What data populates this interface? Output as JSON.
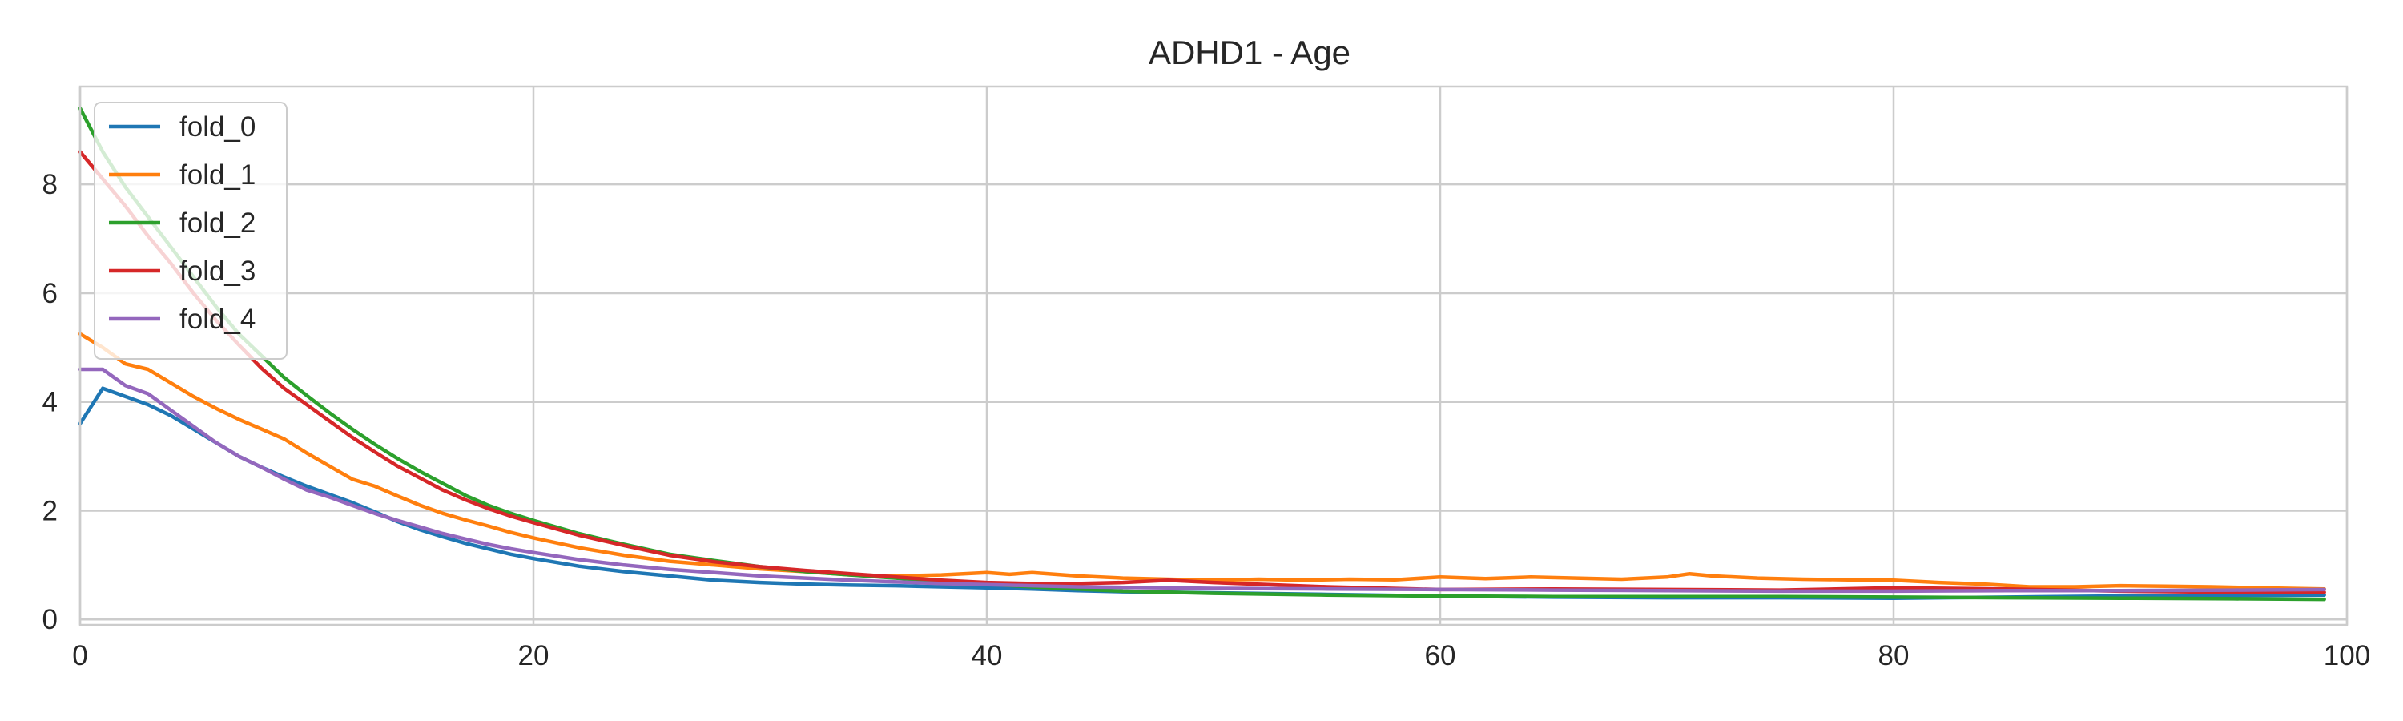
{
  "chart_data": {
    "type": "line",
    "title": "ADHD1 - Age",
    "xlabel": "",
    "ylabel": "",
    "xlim": [
      0,
      100
    ],
    "ylim": [
      -0.1,
      9.8
    ],
    "xticks": [
      0,
      20,
      40,
      60,
      80,
      100
    ],
    "yticks": [
      0,
      2,
      4,
      6,
      8
    ],
    "grid": true,
    "legend_position": "upper-left",
    "series": [
      {
        "name": "fold_0",
        "color": "#1f77b4",
        "x": [
          0,
          1,
          2,
          3,
          4,
          5,
          6,
          7,
          8,
          9,
          10,
          11,
          12,
          13,
          14,
          15,
          16,
          17,
          18,
          19,
          20,
          22,
          24,
          26,
          28,
          30,
          32,
          34,
          36,
          38,
          40,
          42,
          44,
          46,
          48,
          50,
          55,
          60,
          65,
          70,
          75,
          80,
          85,
          90,
          95,
          99
        ],
        "y": [
          3.6,
          4.25,
          4.1,
          3.95,
          3.75,
          3.5,
          3.25,
          3.0,
          2.8,
          2.62,
          2.45,
          2.3,
          2.15,
          1.98,
          1.8,
          1.65,
          1.52,
          1.4,
          1.3,
          1.2,
          1.12,
          0.98,
          0.88,
          0.8,
          0.72,
          0.68,
          0.65,
          0.63,
          0.62,
          0.6,
          0.58,
          0.56,
          0.53,
          0.51,
          0.5,
          0.49,
          0.46,
          0.43,
          0.41,
          0.4,
          0.4,
          0.39,
          0.41,
          0.43,
          0.44,
          0.45
        ]
      },
      {
        "name": "fold_1",
        "color": "#ff7f0e",
        "x": [
          0,
          1,
          2,
          3,
          4,
          5,
          6,
          7,
          8,
          9,
          10,
          11,
          12,
          13,
          14,
          15,
          16,
          17,
          18,
          19,
          20,
          22,
          24,
          26,
          28,
          30,
          32,
          34,
          36,
          38,
          40,
          41,
          42,
          44,
          46,
          48,
          50,
          52,
          54,
          56,
          58,
          60,
          62,
          64,
          66,
          68,
          70,
          71,
          72,
          74,
          76,
          78,
          80,
          82,
          84,
          86,
          88,
          90,
          92,
          94,
          96,
          99
        ],
        "y": [
          5.25,
          5.0,
          4.7,
          4.6,
          4.35,
          4.1,
          3.88,
          3.68,
          3.5,
          3.32,
          3.06,
          2.82,
          2.58,
          2.45,
          2.27,
          2.1,
          1.95,
          1.83,
          1.72,
          1.6,
          1.5,
          1.32,
          1.18,
          1.07,
          1.0,
          0.93,
          0.88,
          0.82,
          0.8,
          0.82,
          0.86,
          0.83,
          0.86,
          0.8,
          0.76,
          0.74,
          0.72,
          0.74,
          0.72,
          0.74,
          0.73,
          0.78,
          0.75,
          0.78,
          0.76,
          0.74,
          0.78,
          0.84,
          0.8,
          0.76,
          0.74,
          0.73,
          0.72,
          0.68,
          0.65,
          0.6,
          0.6,
          0.62,
          0.61,
          0.6,
          0.58,
          0.56
        ]
      },
      {
        "name": "fold_2",
        "color": "#2ca02c",
        "x": [
          0,
          1,
          2,
          3,
          4,
          5,
          6,
          7,
          8,
          9,
          10,
          11,
          12,
          13,
          14,
          15,
          16,
          17,
          18,
          19,
          20,
          22,
          24,
          26,
          28,
          30,
          32,
          34,
          36,
          38,
          40,
          42,
          44,
          46,
          48,
          50,
          55,
          60,
          65,
          70,
          75,
          80,
          85,
          90,
          95,
          99
        ],
        "y": [
          9.4,
          8.6,
          7.95,
          7.4,
          6.85,
          6.3,
          5.75,
          5.25,
          4.85,
          4.45,
          4.12,
          3.8,
          3.5,
          3.22,
          2.96,
          2.72,
          2.5,
          2.28,
          2.1,
          1.95,
          1.82,
          1.58,
          1.38,
          1.2,
          1.08,
          0.97,
          0.88,
          0.82,
          0.76,
          0.7,
          0.65,
          0.6,
          0.56,
          0.52,
          0.5,
          0.48,
          0.45,
          0.43,
          0.42,
          0.42,
          0.42,
          0.41,
          0.4,
          0.39,
          0.38,
          0.37
        ]
      },
      {
        "name": "fold_3",
        "color": "#d62728",
        "x": [
          0,
          1,
          2,
          3,
          4,
          5,
          6,
          7,
          8,
          9,
          10,
          11,
          12,
          13,
          14,
          15,
          16,
          17,
          18,
          19,
          20,
          22,
          24,
          26,
          28,
          30,
          32,
          34,
          36,
          38,
          40,
          42,
          44,
          46,
          48,
          50,
          55,
          60,
          65,
          70,
          75,
          80,
          85,
          90,
          95,
          99
        ],
        "y": [
          8.6,
          8.1,
          7.6,
          7.05,
          6.55,
          6.0,
          5.5,
          5.05,
          4.62,
          4.25,
          3.95,
          3.65,
          3.35,
          3.08,
          2.82,
          2.6,
          2.38,
          2.2,
          2.04,
          1.9,
          1.78,
          1.55,
          1.36,
          1.18,
          1.06,
          0.97,
          0.9,
          0.84,
          0.78,
          0.72,
          0.68,
          0.66,
          0.66,
          0.68,
          0.72,
          0.68,
          0.6,
          0.55,
          0.56,
          0.55,
          0.54,
          0.58,
          0.56,
          0.52,
          0.5,
          0.5
        ]
      },
      {
        "name": "fold_4",
        "color": "#9467bd",
        "x": [
          0,
          1,
          2,
          3,
          4,
          5,
          6,
          7,
          8,
          9,
          10,
          11,
          12,
          13,
          14,
          15,
          16,
          17,
          18,
          19,
          20,
          22,
          24,
          26,
          28,
          30,
          32,
          34,
          36,
          38,
          40,
          42,
          44,
          46,
          48,
          50,
          55,
          60,
          65,
          70,
          75,
          80,
          85,
          90,
          95,
          99
        ],
        "y": [
          4.6,
          4.6,
          4.3,
          4.15,
          3.85,
          3.55,
          3.25,
          3.0,
          2.8,
          2.58,
          2.38,
          2.25,
          2.1,
          1.95,
          1.82,
          1.7,
          1.58,
          1.48,
          1.38,
          1.3,
          1.23,
          1.1,
          1.0,
          0.92,
          0.86,
          0.8,
          0.76,
          0.72,
          0.69,
          0.66,
          0.64,
          0.62,
          0.6,
          0.59,
          0.58,
          0.57,
          0.56,
          0.55,
          0.54,
          0.53,
          0.52,
          0.52,
          0.53,
          0.53,
          0.54,
          0.55
        ]
      }
    ]
  }
}
